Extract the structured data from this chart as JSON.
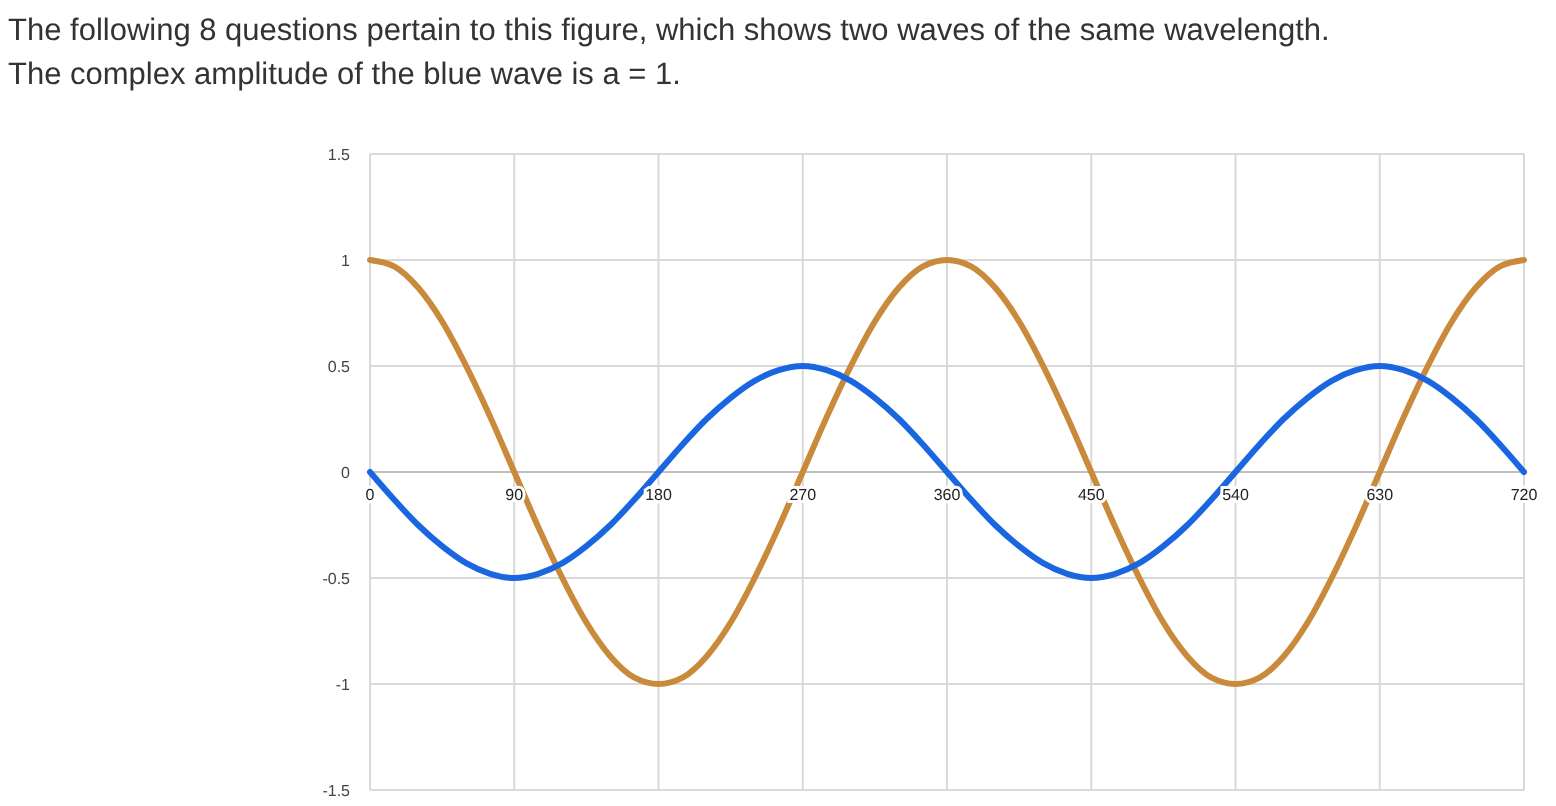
{
  "chart_data": {
    "type": "line",
    "title": "The following 8 questions pertain to this figure, which shows two waves of the same wavelength.",
    "subtitle": "The complex amplitude of the blue wave is a = 1.",
    "x": [
      0,
      15,
      30,
      45,
      60,
      75,
      90,
      105,
      120,
      135,
      150,
      165,
      180,
      195,
      210,
      225,
      240,
      255,
      270,
      285,
      300,
      315,
      330,
      345,
      360,
      375,
      390,
      405,
      420,
      435,
      450,
      465,
      480,
      495,
      510,
      525,
      540,
      555,
      570,
      585,
      600,
      615,
      630,
      645,
      660,
      675,
      690,
      705,
      720
    ],
    "series": [
      {
        "color": "#c98a3c",
        "values": [
          1,
          0.97,
          0.87,
          0.71,
          0.5,
          0.26,
          0,
          -0.26,
          -0.5,
          -0.71,
          -0.87,
          -0.97,
          -1,
          -0.97,
          -0.87,
          -0.71,
          -0.5,
          -0.26,
          0,
          0.26,
          0.5,
          0.71,
          0.87,
          0.97,
          1,
          0.97,
          0.87,
          0.71,
          0.5,
          0.26,
          0,
          -0.26,
          -0.5,
          -0.71,
          -0.87,
          -0.97,
          -1,
          -0.97,
          -0.87,
          -0.71,
          -0.5,
          -0.26,
          0,
          0.26,
          0.5,
          0.71,
          0.87,
          0.97,
          1
        ]
      },
      {
        "color": "#1a66e0",
        "values": [
          0,
          -0.13,
          -0.25,
          -0.35,
          -0.43,
          -0.48,
          -0.5,
          -0.48,
          -0.43,
          -0.35,
          -0.25,
          -0.13,
          0,
          0.13,
          0.25,
          0.35,
          0.43,
          0.48,
          0.5,
          0.48,
          0.43,
          0.35,
          0.25,
          0.13,
          0,
          -0.13,
          -0.25,
          -0.35,
          -0.43,
          -0.48,
          -0.5,
          -0.48,
          -0.43,
          -0.35,
          -0.25,
          -0.13,
          0,
          0.13,
          0.25,
          0.35,
          0.43,
          0.48,
          0.5,
          0.48,
          0.43,
          0.35,
          0.25,
          0.13,
          0
        ]
      }
    ],
    "xlim": [
      0,
      720
    ],
    "xticks": [
      0,
      90,
      180,
      270,
      360,
      450,
      540,
      630,
      720
    ],
    "ylim": [
      -1.5,
      1.5
    ],
    "yticks": [
      -1.5,
      -1,
      -0.5,
      0,
      0.5,
      1,
      1.5
    ],
    "grid": true,
    "marker": "none",
    "line_style": "solid"
  }
}
